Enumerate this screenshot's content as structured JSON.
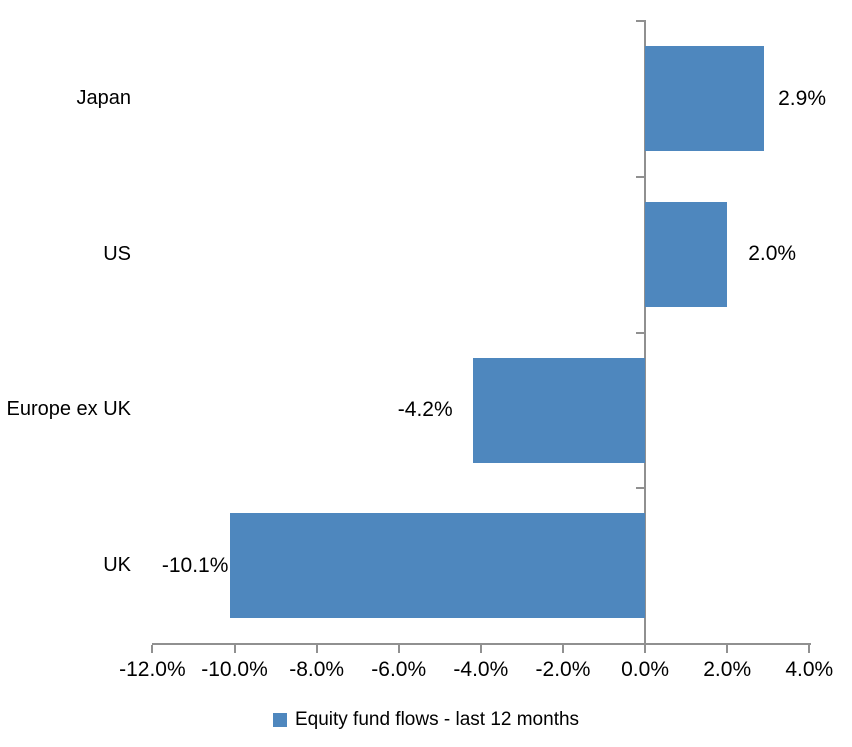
{
  "chart_data": {
    "type": "bar",
    "orientation": "horizontal",
    "title": "",
    "xlabel": "",
    "ylabel": "",
    "categories": [
      "Japan",
      "US",
      "Europe ex UK",
      "UK"
    ],
    "series": [
      {
        "name": "Equity fund flows - last 12 months",
        "values": [
          2.9,
          2.0,
          -4.2,
          -10.1
        ],
        "value_labels": [
          "2.9%",
          "2.0%",
          "-4.2%",
          "-10.1%"
        ]
      }
    ],
    "xlim": [
      -12,
      4
    ],
    "x_tick_step": 2,
    "x_tick_labels": [
      "-12.0%",
      "-10.0%",
      "-8.0%",
      "-6.0%",
      "-4.0%",
      "-2.0%",
      "0.0%",
      "2.0%",
      "4.0%"
    ],
    "grid": false,
    "legend_position": "bottom",
    "colors": {
      "bar": "#4E87BE",
      "axis": "#909090",
      "text": "#000000",
      "background": "#FFFFFF"
    }
  },
  "legend": {
    "label": "Equity fund flows - last 12 months"
  }
}
